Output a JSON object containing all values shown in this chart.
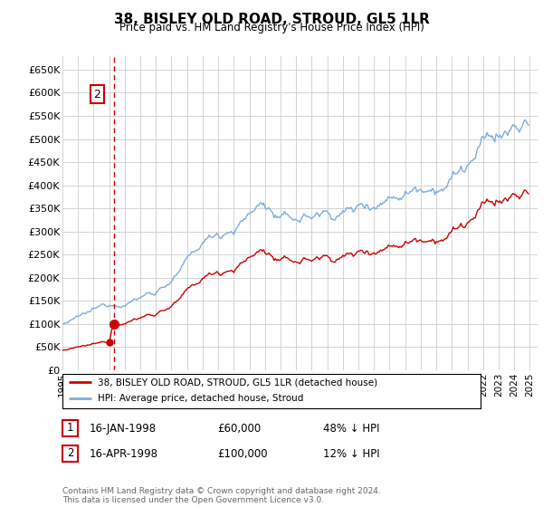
{
  "title": "38, BISLEY OLD ROAD, STROUD, GL5 1LR",
  "subtitle": "Price paid vs. HM Land Registry's House Price Index (HPI)",
  "ylim": [
    0,
    680000
  ],
  "yticks": [
    0,
    50000,
    100000,
    150000,
    200000,
    250000,
    300000,
    350000,
    400000,
    450000,
    500000,
    550000,
    600000,
    650000
  ],
  "xlim_start": 1995.0,
  "xlim_end": 2025.5,
  "sale1_date_year": 1998.04,
  "sale1_price": 60000,
  "sale1_label": "1",
  "sale2_date_year": 1998.29,
  "sale2_price": 100000,
  "sale2_label": "2",
  "line_color_property": "#cc0000",
  "line_color_hpi": "#7aade0",
  "dashed_line_color": "#cc0000",
  "legend_line1": "38, BISLEY OLD ROAD, STROUD, GL5 1LR (detached house)",
  "legend_line2": "HPI: Average price, detached house, Stroud",
  "table_row1": [
    "1",
    "16-JAN-1998",
    "£60,000",
    "48% ↓ HPI"
  ],
  "table_row2": [
    "2",
    "16-APR-1998",
    "£100,000",
    "12% ↓ HPI"
  ],
  "footer": "Contains HM Land Registry data © Crown copyright and database right 2024.\nThis data is licensed under the Open Government Licence v3.0.",
  "background_color": "#ffffff",
  "grid_color": "#cccccc"
}
